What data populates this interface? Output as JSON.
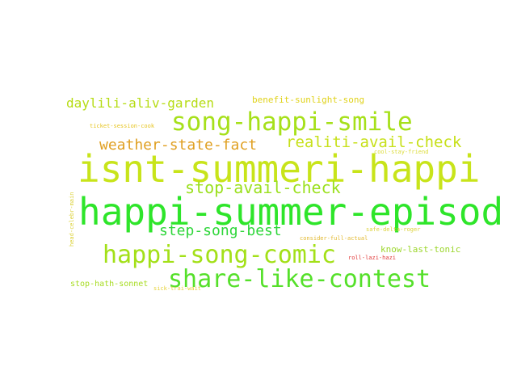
{
  "word_cloud": {
    "words": [
      {
        "text": "isnt-summeri-happi",
        "color": "#c8e41a"
      },
      {
        "text": "happi-summer-episod",
        "color": "#2ee52a"
      },
      {
        "text": "song-happi-smile",
        "color": "#a6e01a"
      },
      {
        "text": "share-like-contest",
        "color": "#55e02a"
      },
      {
        "text": "happi-song-comic",
        "color": "#a3e018"
      },
      {
        "text": "stop-avail-check",
        "color": "#9be01e"
      },
      {
        "text": "realiti-avail-check",
        "color": "#c7e01a"
      },
      {
        "text": "weather-state-fact",
        "color": "#e0a022"
      },
      {
        "text": "step-song-best",
        "color": "#2ed63a"
      },
      {
        "text": "daylili-aliv-garden",
        "color": "#b6dc14"
      },
      {
        "text": "benefit-sunlight-song",
        "color": "#e0d21a"
      },
      {
        "text": "know-last-tonic",
        "color": "#9bd62a"
      },
      {
        "text": "stop-hath-sonnet",
        "color": "#a6dc20"
      },
      {
        "text": "ticket-session-cook",
        "color": "#e6c420"
      },
      {
        "text": "cool-stay-friend",
        "color": "#dcdc3a"
      },
      {
        "text": "safe-delta-roger",
        "color": "#dcd23a"
      },
      {
        "text": "consider-full-actual",
        "color": "#e2b82e"
      },
      {
        "text": "roll-lazi-hazi",
        "color": "#e03a3a"
      },
      {
        "text": "sick-trai-wait",
        "color": "#e6d23a"
      },
      {
        "text": "head-celebr-main",
        "color": "#dcd23a"
      }
    ]
  }
}
